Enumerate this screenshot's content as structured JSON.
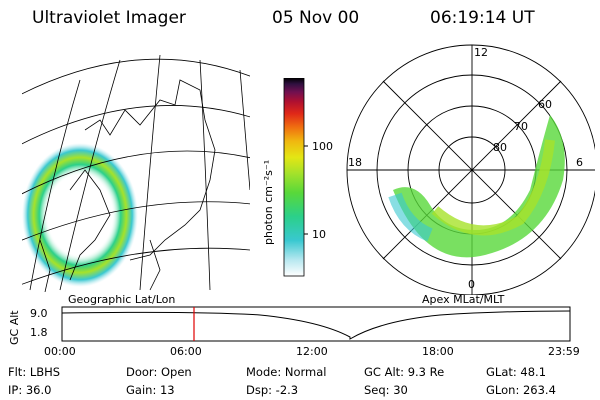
{
  "header": {
    "instrument": "Ultraviolet Imager",
    "date": "05 Nov 00",
    "time": "06:19:14 UT"
  },
  "geo_panel": {
    "label": "Geographic Lat/Lon"
  },
  "colorbar": {
    "unit_label": "photon cm⁻²s⁻¹",
    "ticks": [
      "100",
      "10"
    ],
    "colors": [
      "#ffffff",
      "#b8e8f0",
      "#39c8d0",
      "#2bd08a",
      "#58d83a",
      "#a6e22a",
      "#e4e614",
      "#f0b810",
      "#f07010",
      "#e02818",
      "#b01030",
      "#701050",
      "#301040",
      "#000000"
    ]
  },
  "polar_panel": {
    "label": "Apex MLat/MLT",
    "mlt_labels": [
      "12",
      "18",
      "6",
      "0"
    ],
    "lat_labels": [
      "60",
      "70",
      "80"
    ]
  },
  "altitude_track": {
    "axis_label": "GC Alt",
    "y_ticks": [
      "9.0",
      "1.8"
    ],
    "x_ticks": [
      "00:00",
      "06:00",
      "12:00",
      "18:00",
      "23:59"
    ],
    "marker_time": "06:19",
    "marker_color": "#e00000"
  },
  "status": {
    "filter": "Flt: LBHS",
    "ip": "IP: 36.0",
    "door": "Door: Open",
    "gain": "Gain: 13",
    "mode": "Mode: Normal",
    "dsp": "Dsp:    -2.3",
    "gc_alt": "GC Alt: 9.3 Re",
    "seq": "Seq: 30",
    "glat": "GLat:  48.1",
    "glon": "GLon: 263.4"
  }
}
